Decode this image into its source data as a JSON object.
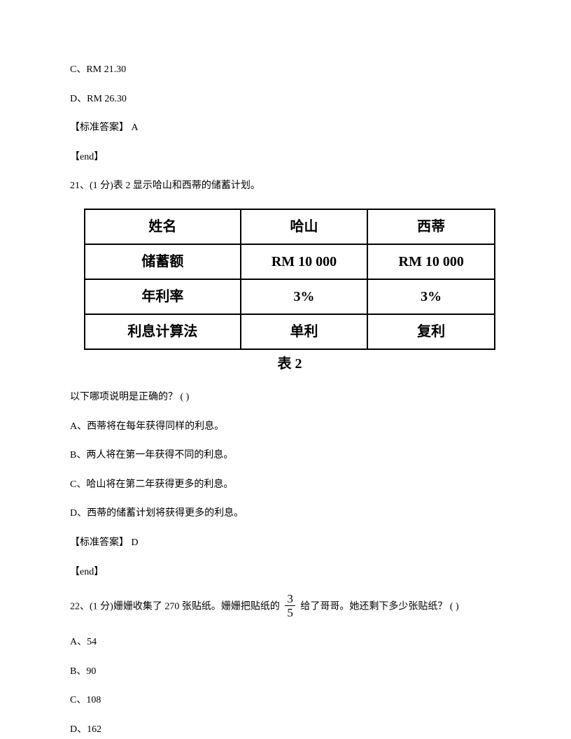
{
  "prev": {
    "optC": "C、RM 21.30",
    "optD": "D、RM 26.30",
    "answer_label": "【标准答案】 A",
    "end_label": "【end】"
  },
  "q21": {
    "stem": "21、(1 分)表 2 显示哈山和西蒂的储蓄计划。",
    "table": {
      "r0": {
        "c0": "姓名",
        "c1": "哈山",
        "c2": "西蒂"
      },
      "r1": {
        "c0": "储蓄额",
        "c1": "RM 10 000",
        "c2": "RM 10 000"
      },
      "r2": {
        "c0": "年利率",
        "c1": "3%",
        "c2": "3%"
      },
      "r3": {
        "c0": "利息计算法",
        "c1": "单利",
        "c2": "复利"
      }
    },
    "table_caption": "表 2",
    "prompt": "以下哪项说明是正确的？ ( )",
    "optA": "A、西蒂将在每年获得同样的利息。",
    "optB": "B、两人将在第一年获得不同的利息。",
    "optC": "C、哈山将在第二年获得更多的利息。",
    "optD": "D、西蒂的储蓄计划将获得更多的利息。",
    "answer_label": "【标准答案】 D",
    "end_label": "【end】"
  },
  "q22": {
    "stem_before": "22、(1 分)姗姗收集了 270 张贴纸。姗姗把贴纸的 ",
    "frac_num": "3",
    "frac_den": "5",
    "stem_after": " 给了哥哥。她还剩下多少张贴纸？ ( )",
    "optA": "A、54",
    "optB": "B、90",
    "optC": "C、108",
    "optD": "D、162"
  }
}
